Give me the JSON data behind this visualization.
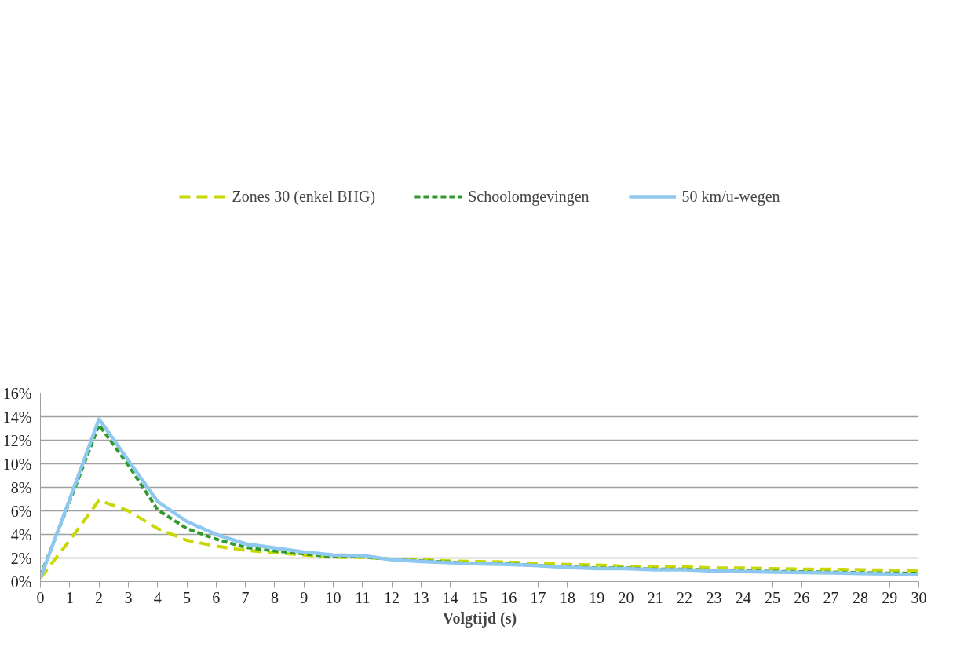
{
  "chart_data": {
    "type": "line",
    "xlabel": "Volgtijd (s)",
    "x": [
      0,
      1,
      2,
      3,
      4,
      5,
      6,
      7,
      8,
      9,
      10,
      11,
      12,
      13,
      14,
      15,
      16,
      17,
      18,
      19,
      20,
      21,
      22,
      23,
      24,
      25,
      26,
      27,
      28,
      29,
      30
    ],
    "xlim": [
      0,
      30
    ],
    "xticks": [
      0,
      1,
      2,
      3,
      4,
      5,
      6,
      7,
      8,
      9,
      10,
      11,
      12,
      13,
      14,
      15,
      16,
      17,
      18,
      19,
      20,
      21,
      22,
      23,
      24,
      25,
      26,
      27,
      28,
      29,
      30
    ],
    "ylim": [
      0,
      16
    ],
    "yticks": [
      {
        "value": 0,
        "label": "0%"
      },
      {
        "value": 2,
        "label": "2%"
      },
      {
        "value": 4,
        "label": "4%"
      },
      {
        "value": 6,
        "label": "6%"
      },
      {
        "value": 8,
        "label": "8%"
      },
      {
        "value": 10,
        "label": "10%"
      },
      {
        "value": 12,
        "label": "12%"
      },
      {
        "value": 14,
        "label": "14%"
      },
      {
        "value": 16,
        "label": "16%"
      }
    ],
    "grid": "y",
    "legend": "top",
    "marker": "none",
    "series": [
      {
        "name": "Zones 30 (enkel BHG)",
        "color": "#c8d800",
        "line_style": "dashed",
        "values": [
          0.3,
          3.5,
          6.9,
          6.0,
          4.5,
          3.5,
          3.0,
          2.65,
          2.45,
          2.25,
          2.05,
          2.05,
          1.9,
          1.85,
          1.75,
          1.7,
          1.65,
          1.55,
          1.45,
          1.4,
          1.3,
          1.25,
          1.25,
          1.15,
          1.15,
          1.1,
          1.05,
          1.05,
          1.0,
          0.97,
          0.9
        ]
      },
      {
        "name": "Schoolomgevingen",
        "color": "#2e9a2e",
        "line_style": "dotted",
        "values": [
          0.5,
          6.8,
          13.3,
          9.9,
          6.1,
          4.5,
          3.6,
          2.9,
          2.6,
          2.35,
          2.1,
          2.1,
          1.88,
          1.75,
          1.65,
          1.5,
          1.5,
          1.35,
          1.25,
          1.15,
          1.15,
          1.05,
          1.05,
          0.95,
          0.9,
          0.87,
          0.83,
          0.8,
          0.75,
          0.72,
          0.7
        ]
      },
      {
        "name": "50 km/u-wegen",
        "color": "#8ec8f0",
        "line_style": "solid",
        "values": [
          0.3,
          7.0,
          13.8,
          10.3,
          6.8,
          5.1,
          4.0,
          3.2,
          2.85,
          2.5,
          2.25,
          2.2,
          1.85,
          1.7,
          1.6,
          1.5,
          1.45,
          1.35,
          1.2,
          1.1,
          1.1,
          1.0,
          1.0,
          0.9,
          0.85,
          0.8,
          0.77,
          0.73,
          0.68,
          0.65,
          0.6
        ]
      }
    ]
  }
}
